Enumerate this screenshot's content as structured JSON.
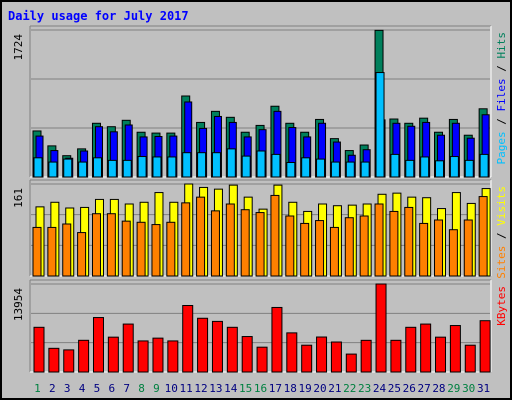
{
  "chart_data": [
    {
      "type": "bar",
      "title": "Daily usage for July 2017",
      "panel": "top",
      "max_label": "1724",
      "ylim": [
        0,
        1724
      ],
      "right_label": [
        "Pages",
        "Files",
        "Hits"
      ],
      "colors": {
        "Hits": "#00805c",
        "Files": "#0000ff",
        "Pages": "#00c0ff"
      },
      "categories": [
        "1",
        "2",
        "3",
        "4",
        "5",
        "6",
        "7",
        "8",
        "9",
        "10",
        "11",
        "12",
        "13",
        "14",
        "15",
        "16",
        "17",
        "18",
        "19",
        "20",
        "21",
        "22",
        "23",
        "24",
        "25",
        "26",
        "27",
        "28",
        "29",
        "30",
        "31"
      ],
      "series": [
        {
          "name": "Hits",
          "values": [
            540,
            365,
            250,
            330,
            630,
            590,
            665,
            525,
            515,
            515,
            950,
            640,
            770,
            700,
            525,
            605,
            830,
            630,
            525,
            675,
            450,
            310,
            375,
            1720,
            680,
            630,
            690,
            525,
            675,
            490,
            800
          ]
        },
        {
          "name": "Files",
          "values": [
            480,
            310,
            220,
            305,
            590,
            530,
            610,
            470,
            475,
            480,
            880,
            570,
            710,
            640,
            470,
            555,
            770,
            580,
            470,
            630,
            410,
            255,
            320,
            670,
            630,
            595,
            640,
            490,
            630,
            455,
            730
          ]
        },
        {
          "name": "Pages",
          "values": [
            225,
            175,
            210,
            175,
            225,
            195,
            195,
            240,
            235,
            235,
            285,
            285,
            285,
            330,
            245,
            305,
            265,
            170,
            225,
            210,
            175,
            175,
            175,
            1225,
            265,
            195,
            235,
            190,
            240,
            195,
            265
          ]
        }
      ]
    },
    {
      "type": "bar",
      "panel": "middle",
      "max_label": "161",
      "ylim": [
        0,
        161
      ],
      "right_label": [
        "Sites",
        "Visits"
      ],
      "colors": {
        "Visits": "#ffff00",
        "Sites": "#ff8000"
      },
      "categories": [
        "1",
        "2",
        "3",
        "4",
        "5",
        "6",
        "7",
        "8",
        "9",
        "10",
        "11",
        "12",
        "13",
        "14",
        "15",
        "16",
        "17",
        "18",
        "19",
        "20",
        "21",
        "22",
        "23",
        "24",
        "25",
        "26",
        "27",
        "28",
        "29",
        "30",
        "31"
      ],
      "series": [
        {
          "name": "Visits",
          "values": [
            121,
            129,
            119,
            120,
            134,
            134,
            126,
            129,
            146,
            129,
            161,
            155,
            152,
            159,
            138,
            117,
            159,
            129,
            113,
            126,
            123,
            124,
            126,
            143,
            145,
            138,
            137,
            118,
            146,
            127,
            153
          ]
        },
        {
          "name": "Sites",
          "values": [
            85,
            85,
            91,
            76,
            109,
            109,
            96,
            94,
            90,
            94,
            128,
            138,
            114,
            126,
            116,
            111,
            141,
            105,
            92,
            97,
            85,
            102,
            105,
            126,
            113,
            120,
            92,
            98,
            81,
            98,
            139
          ]
        }
      ]
    },
    {
      "type": "bar",
      "panel": "bottom",
      "max_label": "13954",
      "ylim": [
        0,
        13954
      ],
      "right_label": [
        "KBytes"
      ],
      "colors": {
        "KBytes": "#ff0000"
      },
      "categories": [
        "1",
        "2",
        "3",
        "4",
        "5",
        "6",
        "7",
        "8",
        "9",
        "10",
        "11",
        "12",
        "13",
        "14",
        "15",
        "16",
        "17",
        "18",
        "19",
        "20",
        "21",
        "22",
        "23",
        "24",
        "25",
        "26",
        "27",
        "28",
        "29",
        "30",
        "31"
      ],
      "series": [
        {
          "name": "KBytes",
          "values": [
            7087,
            3755,
            3506,
            5025,
            8635,
            5525,
            7601,
            4927,
            5370,
            4927,
            10545,
            8521,
            8025,
            7087,
            5622,
            3936,
            10234,
            6205,
            4250,
            5547,
            4754,
            2840,
            5023,
            13954,
            5025,
            7087,
            7601,
            5525,
            7368,
            4250,
            8135
          ]
        }
      ]
    }
  ],
  "weekend_days": [
    "1",
    "8",
    "9",
    "15",
    "16",
    "22",
    "23",
    "29",
    "30"
  ],
  "label_colors": {
    "weekday": "#000080",
    "weekend": "#008040",
    "title": "#0000ff"
  }
}
